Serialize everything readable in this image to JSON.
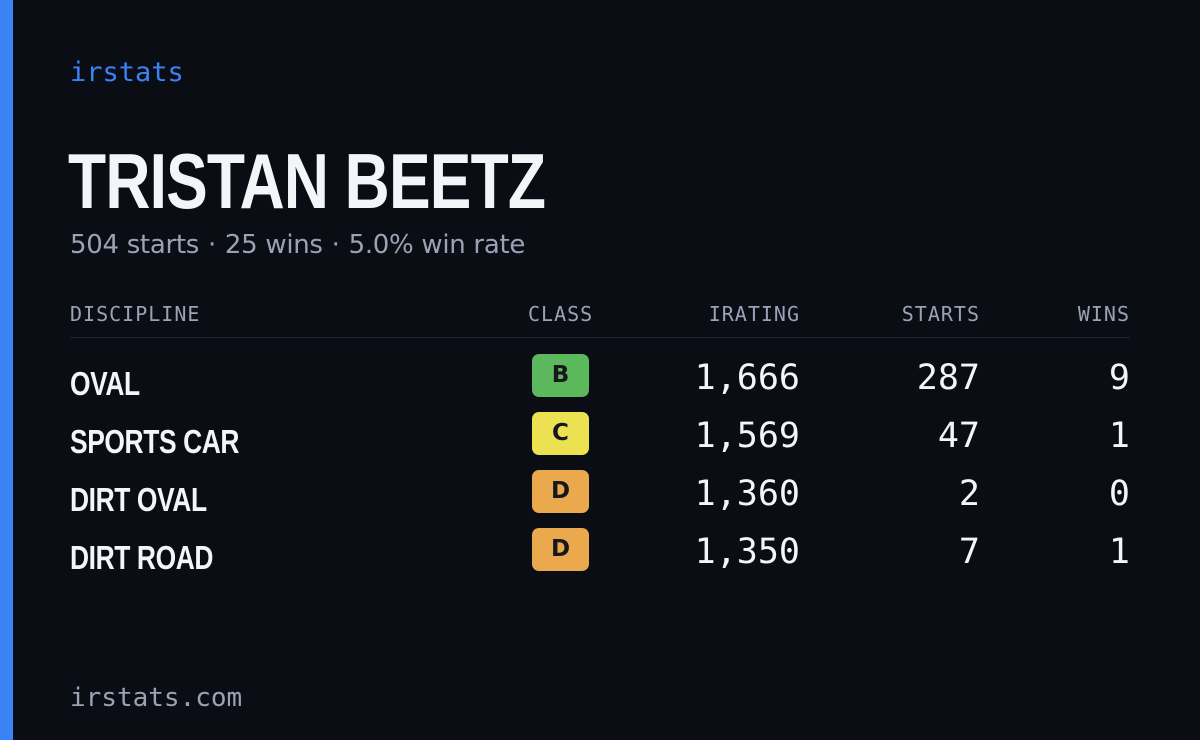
{
  "brand": "irstats",
  "player": {
    "name": "TRISTAN BEETZ",
    "starts": "504 starts",
    "wins": "25 wins",
    "win_rate": "5.0% win rate",
    "separator": "·"
  },
  "table": {
    "headers": {
      "discipline": "DISCIPLINE",
      "class": "CLASS",
      "irating": "IRATING",
      "starts": "STARTS",
      "wins": "WINS"
    },
    "rows": [
      {
        "discipline": "OVAL",
        "class": "B",
        "class_color": "#5cb85c",
        "irating": "1,666",
        "starts": "287",
        "wins": "9"
      },
      {
        "discipline": "SPORTS CAR",
        "class": "C",
        "class_color": "#ece151",
        "irating": "1,569",
        "starts": "47",
        "wins": "1"
      },
      {
        "discipline": "DIRT OVAL",
        "class": "D",
        "class_color": "#eaa94d",
        "irating": "1,360",
        "starts": "2",
        "wins": "0"
      },
      {
        "discipline": "DIRT ROAD",
        "class": "D",
        "class_color": "#eaa94d",
        "irating": "1,350",
        "starts": "7",
        "wins": "1"
      }
    ]
  },
  "footer": {
    "url": "irstats.com"
  },
  "colors": {
    "background": "#0b0d14",
    "accent": "#3b82f6",
    "text_primary": "#f4f5f8",
    "text_muted": "#9aa3b5"
  }
}
